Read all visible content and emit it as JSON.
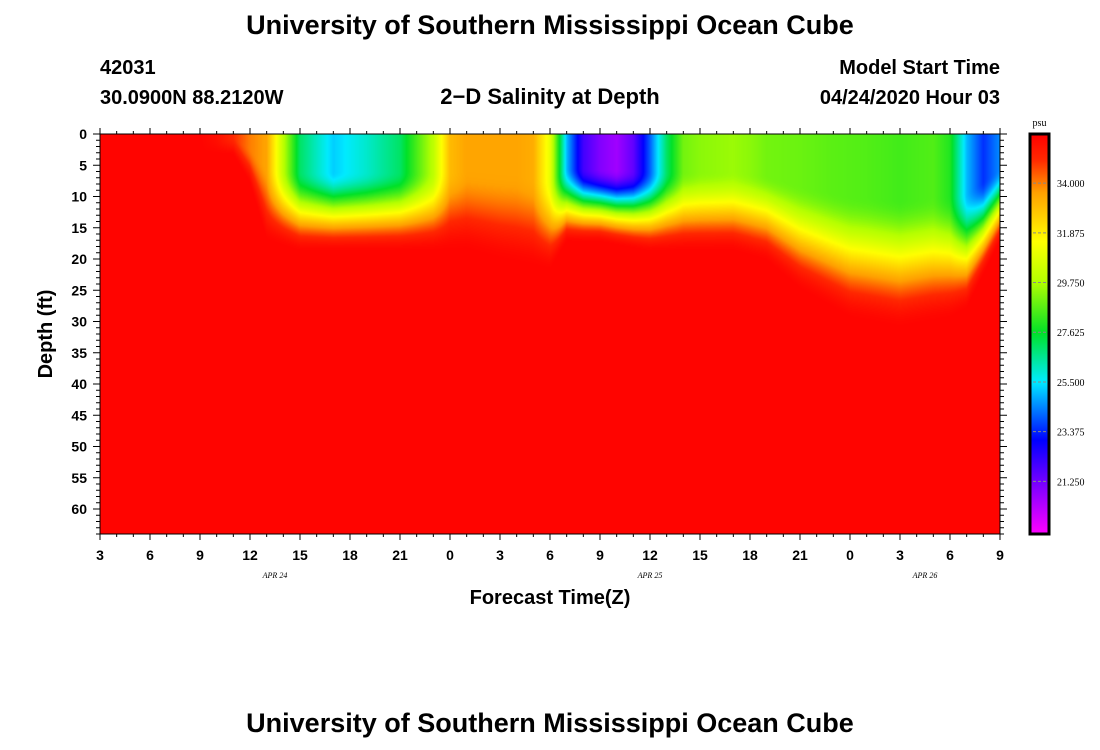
{
  "header": {
    "title": "University of Southern Mississippi Ocean Cube",
    "station_id": "42031",
    "station_coords": "30.0900N 88.2120W",
    "subtitle": "2−D Salinity at Depth",
    "model_label": "Model Start Time",
    "model_time": "04/24/2020 Hour 03"
  },
  "footer": {
    "title": "University of Southern Mississippi Ocean Cube"
  },
  "chart_data": {
    "type": "heatmap",
    "title": "2-D Salinity at Depth",
    "xlabel": "Forecast Time(Z)",
    "ylabel": "Depth (ft)",
    "x_unit": "hours since 04/24/2020 03Z",
    "x_range": [
      0,
      54
    ],
    "x_tick_hours": [
      0,
      3,
      6,
      9,
      12,
      15,
      18,
      21,
      24,
      27,
      30,
      33,
      36,
      39,
      42,
      45,
      48,
      51,
      54
    ],
    "x_tick_labels": [
      "3",
      "6",
      "9",
      "12",
      "15",
      "18",
      "21",
      "0",
      "3",
      "6",
      "9",
      "12",
      "15",
      "18",
      "21",
      "0",
      "3",
      "6",
      "9"
    ],
    "date_labels": [
      {
        "hour": 10.5,
        "text": "APR 24"
      },
      {
        "hour": 33,
        "text": "APR 25"
      },
      {
        "hour": 49.5,
        "text": "APR 26"
      }
    ],
    "y_range": [
      0,
      64
    ],
    "y_ticks": [
      0,
      5,
      10,
      15,
      20,
      25,
      30,
      35,
      40,
      45,
      50,
      55,
      60
    ],
    "colorbar": {
      "unit": "psu",
      "range": [
        19.0,
        36.1
      ],
      "tick_labels": [
        "34.000",
        "31.875",
        "29.750",
        "27.625",
        "25.500",
        "23.375",
        "21.250"
      ],
      "tick_values": [
        34.0,
        31.875,
        29.75,
        27.625,
        25.5,
        23.375,
        21.25
      ]
    },
    "surface_salinity": {
      "hours": [
        0,
        6,
        7,
        8,
        9,
        10,
        11,
        12,
        14,
        16,
        18,
        20,
        21,
        22,
        23,
        24,
        25,
        26,
        27,
        28,
        29,
        30,
        31,
        32,
        33,
        34,
        35,
        36,
        38,
        39,
        40,
        42,
        44,
        46,
        48,
        50,
        51,
        52,
        53,
        54
      ],
      "psu": [
        36.0,
        36.0,
        35.7,
        35.0,
        34.0,
        33.5,
        30.0,
        27.0,
        25.2,
        26.0,
        27.0,
        30.0,
        33.0,
        33.5,
        33.5,
        33.5,
        33.5,
        33.3,
        31.0,
        25.0,
        22.0,
        21.0,
        20.5,
        21.5,
        24.0,
        27.0,
        29.0,
        29.3,
        29.5,
        29.3,
        29.0,
        28.9,
        28.7,
        28.6,
        28.4,
        28.6,
        28.0,
        25.0,
        23.5,
        24.5
      ]
    },
    "halocline_depth_ft": {
      "hours": [
        0,
        6,
        8,
        9,
        10,
        12,
        21,
        22,
        24,
        27,
        28,
        30,
        33,
        36,
        38,
        40,
        42,
        45,
        48,
        51,
        52,
        54
      ],
      "depth": [
        1,
        1,
        1,
        4,
        10,
        11,
        11,
        11,
        12,
        13,
        10,
        10,
        11,
        11,
        11,
        12,
        15,
        18,
        19,
        18,
        17,
        10
      ]
    },
    "deep_salinity_psu": 36.0
  }
}
